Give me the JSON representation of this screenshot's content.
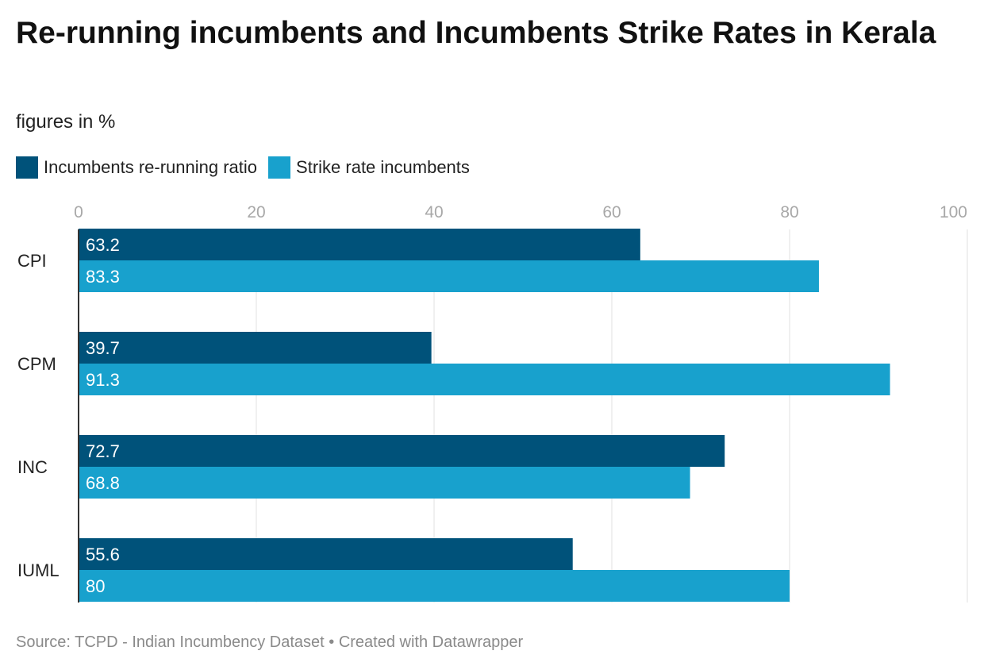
{
  "header": {
    "title": "Re-running incumbents and Incumbents Strike Rates in Kerala",
    "subtitle": "figures in %"
  },
  "footer": {
    "source": "Source: TCPD - Indian Incumbency Dataset • Created with Datawrapper"
  },
  "colors": {
    "series_dark": "#00527a",
    "series_light": "#18a1cd",
    "grid": "#e0e0e0",
    "axis": "#333333",
    "tick_text": "#a8a8a8",
    "bar_label": "#ffffff"
  },
  "chart_data": {
    "type": "bar",
    "orientation": "horizontal",
    "title": "Re-running incumbents and Incumbents Strike Rates in Kerala",
    "subtitle": "figures in %",
    "categories": [
      "CPI",
      "CPM",
      "INC",
      "IUML"
    ],
    "series": [
      {
        "name": "Incumbents re-running ratio",
        "values": [
          63.2,
          39.7,
          72.7,
          55.6
        ],
        "labels": [
          "63.2",
          "39.7",
          "72.7",
          "55.6"
        ]
      },
      {
        "name": "Strike rate incumbents",
        "values": [
          83.3,
          91.3,
          68.8,
          80
        ],
        "labels": [
          "83.3",
          "91.3",
          "68.8",
          "80"
        ]
      }
    ],
    "xlim": [
      0,
      100
    ],
    "xticks": [
      "0",
      "20",
      "40",
      "60",
      "80",
      "100"
    ],
    "xlabel": "",
    "ylabel": "",
    "grid": true,
    "legend_position": "top-left"
  }
}
